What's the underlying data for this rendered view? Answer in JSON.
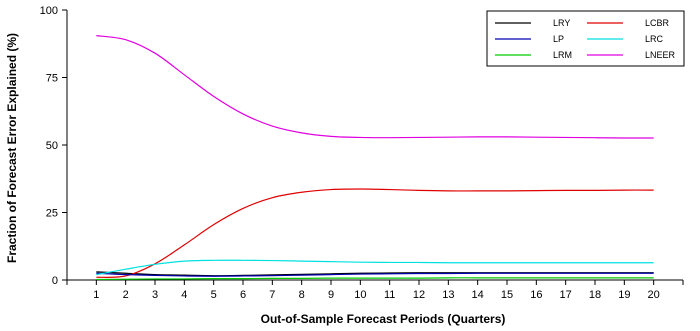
{
  "chart_data": {
    "type": "line",
    "title": "",
    "xlabel": "Out-of-Sample Forecast Periods (Quarters)",
    "ylabel": "Fraction of Forecast Error Explained (%)",
    "x": [
      1,
      2,
      3,
      4,
      5,
      6,
      7,
      8,
      9,
      10,
      11,
      12,
      13,
      14,
      15,
      16,
      17,
      18,
      19,
      20
    ],
    "xlim": [
      0,
      21
    ],
    "ylim": [
      0,
      100
    ],
    "yticks": [
      0,
      25,
      50,
      75,
      100
    ],
    "grid": false,
    "legend_position": "top-right",
    "series": [
      {
        "name": "LRY",
        "color": "#000000",
        "values": [
          3.0,
          2.5,
          2.0,
          1.8,
          1.6,
          1.7,
          1.9,
          2.1,
          2.3,
          2.5,
          2.6,
          2.7,
          2.7,
          2.7,
          2.7,
          2.7,
          2.7,
          2.7,
          2.7,
          2.7
        ]
      },
      {
        "name": "LCBR",
        "color": "#e00000",
        "values": [
          1.0,
          1.5,
          6.0,
          13.0,
          20.5,
          26.5,
          30.5,
          32.5,
          33.5,
          33.7,
          33.5,
          33.2,
          33.0,
          33.0,
          33.0,
          33.1,
          33.2,
          33.2,
          33.3,
          33.3
        ]
      },
      {
        "name": "LP",
        "color": "#0000b0",
        "values": [
          2.5,
          2.0,
          1.7,
          1.5,
          1.4,
          1.5,
          1.6,
          1.8,
          2.0,
          2.2,
          2.3,
          2.4,
          2.4,
          2.5,
          2.5,
          2.5,
          2.5,
          2.5,
          2.5,
          2.5
        ]
      },
      {
        "name": "LRC",
        "color": "#00e0e0",
        "values": [
          2.0,
          4.0,
          5.8,
          7.0,
          7.3,
          7.3,
          7.2,
          7.0,
          6.8,
          6.6,
          6.5,
          6.5,
          6.4,
          6.4,
          6.4,
          6.4,
          6.4,
          6.4,
          6.4,
          6.4
        ]
      },
      {
        "name": "LRM",
        "color": "#00cc00",
        "values": [
          0.2,
          0.3,
          0.4,
          0.4,
          0.5,
          0.5,
          0.6,
          0.6,
          0.7,
          0.7,
          0.7,
          0.7,
          0.8,
          0.8,
          0.8,
          0.8,
          0.8,
          0.8,
          0.8,
          0.8
        ]
      },
      {
        "name": "LNEER",
        "color": "#e000e0",
        "values": [
          90.5,
          89.0,
          84.0,
          76.0,
          68.0,
          61.5,
          57.0,
          54.5,
          53.2,
          52.8,
          52.7,
          52.8,
          52.9,
          53.0,
          53.0,
          52.9,
          52.8,
          52.7,
          52.6,
          52.6
        ]
      }
    ]
  }
}
